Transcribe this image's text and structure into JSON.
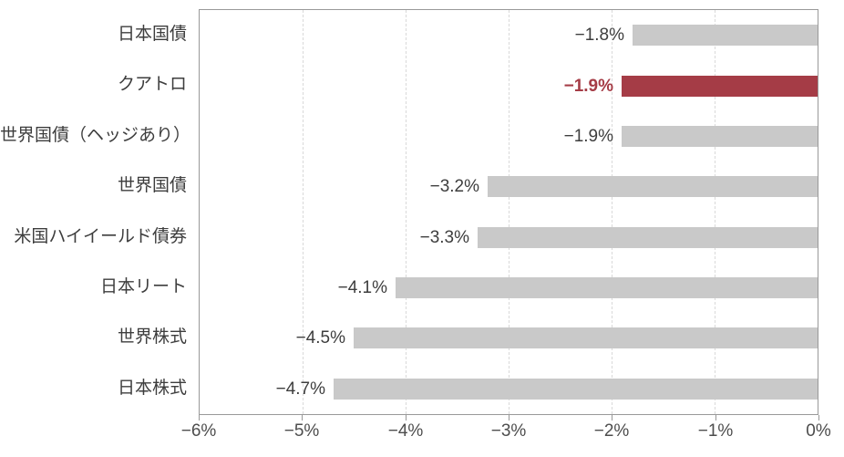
{
  "chart_data": {
    "type": "bar",
    "orientation": "horizontal",
    "title": "",
    "xlabel": "",
    "ylabel": "",
    "categories": [
      "日本国債",
      "クアトロ",
      "世界国債（ヘッジあり）",
      "世界国債",
      "米国ハイイールド債券",
      "日本リート",
      "世界株式",
      "日本株式"
    ],
    "values": [
      -1.8,
      -1.9,
      -1.9,
      -3.2,
      -3.3,
      -4.1,
      -4.5,
      -4.7
    ],
    "value_labels": [
      "−1.8%",
      "−1.9%",
      "−1.9%",
      "−3.2%",
      "−3.3%",
      "−4.1%",
      "−4.5%",
      "−4.7%"
    ],
    "highlight_index": 1,
    "xlim": [
      -6,
      0
    ],
    "x_ticks": [
      -6,
      -5,
      -4,
      -3,
      -2,
      -1,
      0
    ],
    "x_tick_labels": [
      "−6%",
      "−5%",
      "−4%",
      "−3%",
      "−2%",
      "−1%",
      "0%"
    ],
    "grid": "vertical-dashed",
    "legend": "none",
    "colors": {
      "bar": "#c9c9c9",
      "highlight_bar": "#a53c46",
      "value_label": "#3d3d3d",
      "highlight_value_label": "#a53c46",
      "axis_border": "#999999",
      "gridline": "#d9d9d9",
      "tick_label": "#4d4d4d",
      "background": "#ffffff"
    }
  }
}
